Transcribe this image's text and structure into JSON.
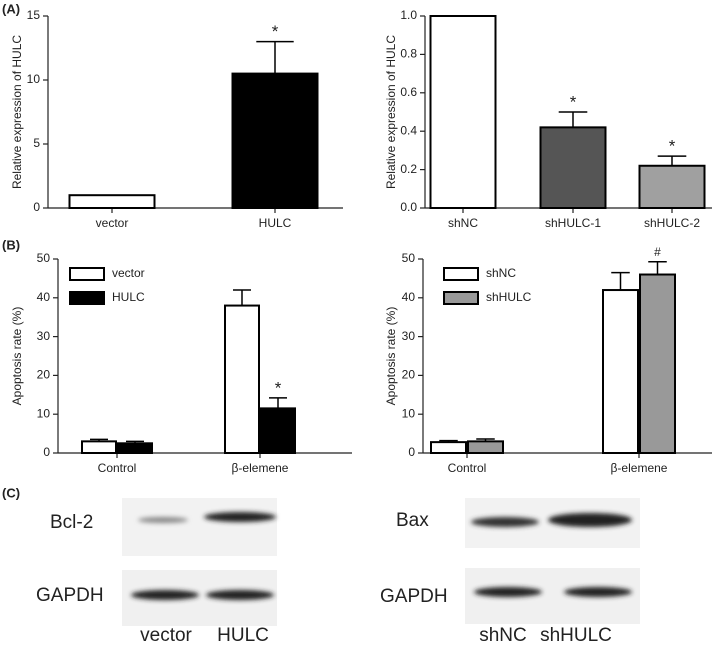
{
  "panel_labels": [
    "(A)",
    "(B)",
    "(C)"
  ],
  "chart_data": [
    {
      "type": "bar",
      "ylabel": "Relative expression of HULC",
      "categories": [
        "vector",
        "HULC"
      ],
      "values": [
        1,
        10.5
      ],
      "errors": [
        null,
        2.5
      ],
      "colors": [
        "#ffffff",
        "#000000"
      ],
      "annotations": [
        null,
        "*"
      ],
      "ylim": [
        0,
        15
      ],
      "yticks": [
        0,
        5,
        10,
        15
      ]
    },
    {
      "type": "bar",
      "ylabel": "Relative expression of HULC",
      "categories": [
        "shNC",
        "shHULC-1",
        "shHULC-2"
      ],
      "values": [
        1,
        0.42,
        0.22
      ],
      "errors": [
        null,
        0.08,
        0.05
      ],
      "colors": [
        "#ffffff",
        "#555555",
        "#a0a0a0"
      ],
      "annotations": [
        null,
        "*",
        "*"
      ],
      "ylim": [
        0,
        1
      ],
      "yticks": [
        {
          "value": 0,
          "label": "0.0"
        },
        0.2,
        0.4,
        0.6,
        0.8,
        {
          "value": 1,
          "label": "1.0"
        }
      ]
    },
    {
      "type": "grouped_bar",
      "ylabel": "Apoptosis rate (%)",
      "legend": "upper left",
      "categories": [
        "Control",
        "β-elemene"
      ],
      "series": [
        {
          "name": "vector",
          "color": "#ffffff",
          "values": [
            3,
            38
          ],
          "errors": [
            0.5,
            4
          ],
          "annotations": [
            null,
            null
          ]
        },
        {
          "name": "HULC",
          "color": "#000000",
          "values": [
            2.5,
            11.5
          ],
          "errors": [
            0.5,
            2.7
          ],
          "annotations": [
            null,
            "*"
          ]
        }
      ],
      "ylim": [
        0,
        50
      ],
      "yticks": [
        0,
        10,
        20,
        30,
        40,
        50
      ]
    },
    {
      "type": "grouped_bar",
      "ylabel": "Apoptosis rate (%)",
      "legend": "upper left",
      "categories": [
        "Control",
        "β-elemene"
      ],
      "series": [
        {
          "name": "shNC",
          "color": "#ffffff",
          "values": [
            2.8,
            42
          ],
          "errors": [
            0.4,
            4.5
          ],
          "annotations": [
            null,
            null
          ]
        },
        {
          "name": "shHULC",
          "color": "#999999",
          "values": [
            3,
            46
          ],
          "errors": [
            0.6,
            3.3
          ],
          "annotations": [
            null,
            "#"
          ]
        }
      ],
      "ylim": [
        0,
        50
      ],
      "yticks": [
        0,
        10,
        20,
        30,
        40,
        50
      ]
    }
  ],
  "blots": [
    {
      "bands": [
        "Bcl-2",
        "GAPDH"
      ],
      "lanes": [
        "vector",
        "HULC"
      ]
    },
    {
      "bands": [
        "Bax",
        "GAPDH"
      ],
      "lanes": [
        "shNC",
        "shHULC"
      ]
    }
  ]
}
